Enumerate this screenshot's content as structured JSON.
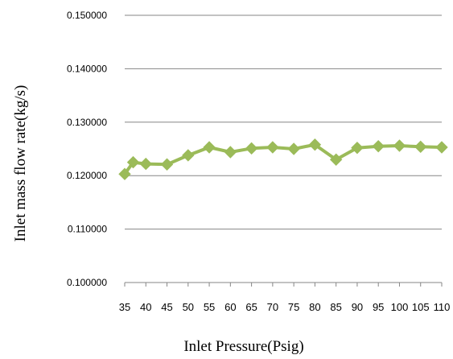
{
  "chart_data": {
    "type": "line",
    "xlabel": "Inlet Pressure(Psig)",
    "ylabel": "Inlet mass flow rate(kg/s)",
    "x": [
      35,
      37,
      40,
      45,
      50,
      55,
      60,
      65,
      70,
      75,
      80,
      85,
      90,
      95,
      100,
      105,
      110
    ],
    "x_tick_labels": [
      "35",
      "40",
      "45",
      "50",
      "55",
      "60",
      "65",
      "70",
      "75",
      "80",
      "85",
      "90",
      "95",
      "100",
      "105",
      "110"
    ],
    "y_ticks": [
      0.1,
      0.11,
      0.12,
      0.13,
      0.14,
      0.15
    ],
    "y_tick_labels": [
      "0.100000",
      "0.110000",
      "0.120000",
      "0.130000",
      "0.140000",
      "0.150000"
    ],
    "ylim": [
      0.1,
      0.15
    ],
    "grid": true,
    "legend": "none",
    "series": [
      {
        "color": "#9bbb59",
        "marker": "diamond",
        "values": [
          0.1203,
          0.1225,
          0.1222,
          0.1221,
          0.1238,
          0.1253,
          0.1244,
          0.1251,
          0.1253,
          0.125,
          0.1258,
          0.123,
          0.1252,
          0.1255,
          0.1256,
          0.1254,
          0.1253
        ]
      }
    ]
  }
}
